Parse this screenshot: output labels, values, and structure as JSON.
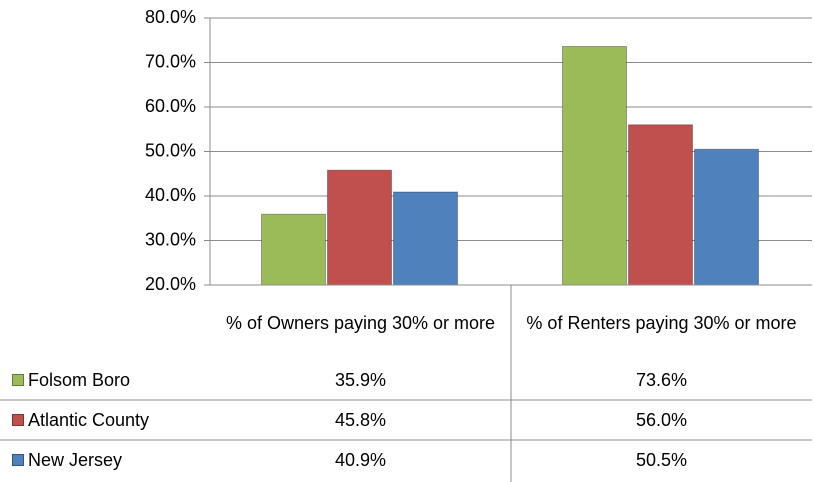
{
  "chart_data": {
    "type": "bar",
    "categories": [
      "% of Owners paying 30% or more",
      "% of Renters paying 30% or more"
    ],
    "series": [
      {
        "name": "Folsom Boro",
        "color": "#9bbb59",
        "values": [
          35.9,
          73.6
        ],
        "value_labels": [
          "35.9%",
          "73.6%"
        ]
      },
      {
        "name": "Atlantic County",
        "color": "#c0504d",
        "values": [
          45.8,
          56.0
        ],
        "value_labels": [
          "45.8%",
          "56.0%"
        ]
      },
      {
        "name": "New Jersey",
        "color": "#4f81bd",
        "values": [
          40.9,
          50.5
        ],
        "value_labels": [
          "40.9%",
          "50.5%"
        ]
      }
    ],
    "ylim": [
      20,
      80
    ],
    "yticks": [
      {
        "value": 20,
        "label": "20.0%"
      },
      {
        "value": 30,
        "label": "30.0%"
      },
      {
        "value": 40,
        "label": "40.0%"
      },
      {
        "value": 50,
        "label": "50.0%"
      },
      {
        "value": 60,
        "label": "60.0%"
      },
      {
        "value": 70,
        "label": "70.0%"
      },
      {
        "value": 80,
        "label": "80.0%"
      }
    ],
    "grid": true,
    "legend": "table"
  }
}
